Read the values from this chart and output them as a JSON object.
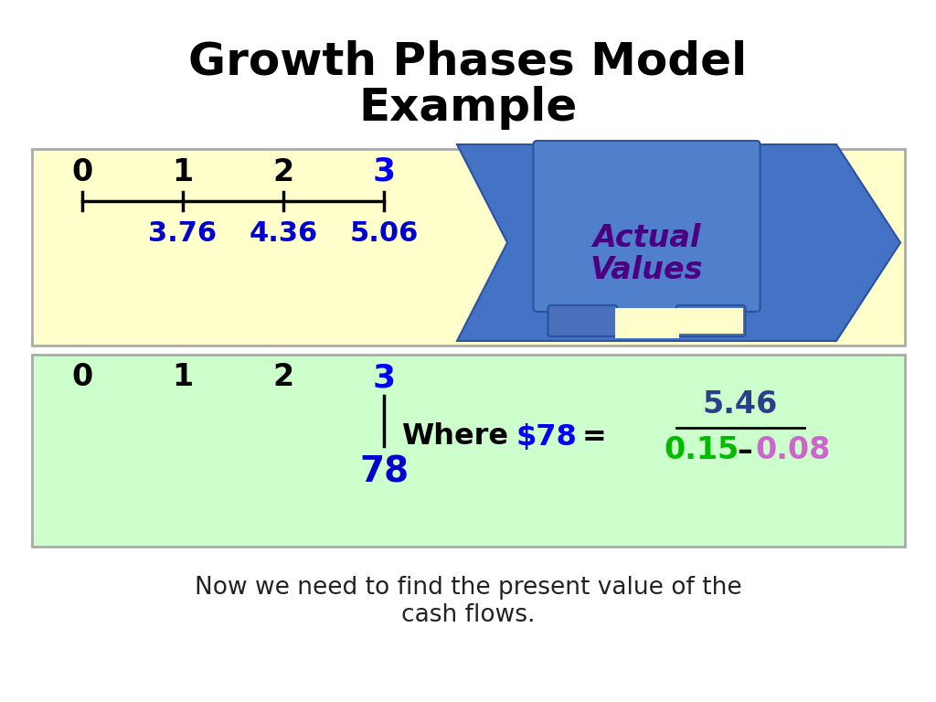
{
  "title_line1": "Growth Phases Model",
  "title_line2": "Example",
  "title_fontsize": 36,
  "title_color": "#000000",
  "bg_color": "#ffffff",
  "box1_bg": "#ffffcc",
  "box2_bg": "#ccffcc",
  "box1_border": "#aaaaaa",
  "box2_border": "#aaaaaa",
  "timeline_numbers": [
    "0",
    "1",
    "2",
    "3"
  ],
  "timeline_values": [
    "3.76",
    "4.36",
    "5.06"
  ],
  "timeline_number_color_default": "#000000",
  "timeline_number_3_color": "#0000ff",
  "timeline_value_color": "#0000cc",
  "ribbon_bg": "#4472c4",
  "ribbon_dark": "#3a62a8",
  "ribbon_text_line1": "Actual",
  "ribbon_text_line2": "Values",
  "ribbon_text_color": "#4b0082",
  "ribbon_text_fontsize": 24,
  "box2_nums": [
    "0",
    "1",
    "2",
    "3"
  ],
  "box2_num_color_default": "#000000",
  "box2_num_3_color": "#0000ff",
  "box2_value": "78",
  "box2_value_color": "#0000cc",
  "where_text": "Where",
  "where_color": "#000000",
  "dollar_text": "$78",
  "dollar_color": "#0000ff",
  "equals_text": "=",
  "equals_color": "#000000",
  "fraction_numerator": "5.46",
  "fraction_num_color": "#2b3f8c",
  "fraction_denom_left": "0.15",
  "fraction_denom_left_color": "#00bb00",
  "fraction_dash": "–",
  "fraction_denom_right": "0.08",
  "fraction_denom_right_color": "#cc66cc",
  "footer_text": "Now we need to find the present value of the\ncash flows.",
  "footer_fontsize": 19,
  "footer_color": "#222222"
}
